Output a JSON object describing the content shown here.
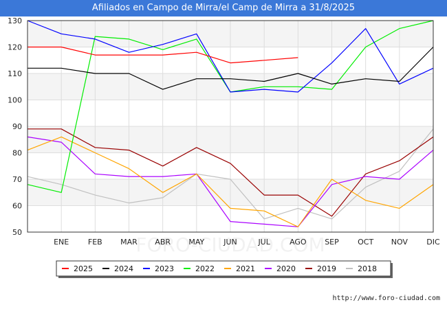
{
  "chart_data": {
    "type": "line",
    "title": "Afiliados en Campo de Mirra/el Camp de Mirra a 31/8/2025",
    "categories": [
      "",
      "ENE",
      "FEB",
      "MAR",
      "ABR",
      "MAY",
      "JUN",
      "JUL",
      "AGO",
      "SEP",
      "OCT",
      "NOV",
      "DIC"
    ],
    "ylim": [
      50,
      130
    ],
    "yticks": [
      50,
      60,
      70,
      80,
      90,
      100,
      110,
      120,
      130
    ],
    "legend_position": "bottom",
    "series": [
      {
        "name": "2025",
        "color": "#ff0000",
        "values": [
          120,
          120,
          117,
          117,
          117,
          118,
          114,
          115,
          116,
          null,
          null,
          null,
          null
        ]
      },
      {
        "name": "2024",
        "color": "#000000",
        "values": [
          112,
          112,
          110,
          110,
          104,
          108,
          108,
          107,
          110,
          106,
          108,
          107,
          120
        ]
      },
      {
        "name": "2023",
        "color": "#0000ff",
        "values": [
          130,
          125,
          123,
          118,
          121,
          125,
          103,
          104,
          103,
          114,
          127,
          106,
          112
        ]
      },
      {
        "name": "2022",
        "color": "#00ee00",
        "values": [
          68,
          65,
          124,
          123,
          119,
          123,
          103,
          105,
          105,
          104,
          120,
          127,
          130
        ]
      },
      {
        "name": "2021",
        "color": "#ffa500",
        "values": [
          81,
          86,
          80,
          74,
          65,
          72,
          59,
          58,
          52,
          70,
          62,
          59,
          68
        ]
      },
      {
        "name": "2020",
        "color": "#aa00ff",
        "values": [
          86,
          84,
          72,
          71,
          71,
          72,
          54,
          53,
          52,
          68,
          71,
          70,
          81
        ]
      },
      {
        "name": "2019",
        "color": "#990000",
        "values": [
          89,
          89,
          82,
          81,
          75,
          82,
          76,
          64,
          64,
          56,
          72,
          77,
          86
        ]
      },
      {
        "name": "2018",
        "color": "#c0c0c0",
        "values": [
          71,
          68,
          64,
          61,
          63,
          72,
          70,
          55,
          59,
          55,
          67,
          73,
          89
        ]
      }
    ]
  },
  "watermark": "FORO-CIUDAD.COM",
  "source": "http://www.foro-ciudad.com"
}
